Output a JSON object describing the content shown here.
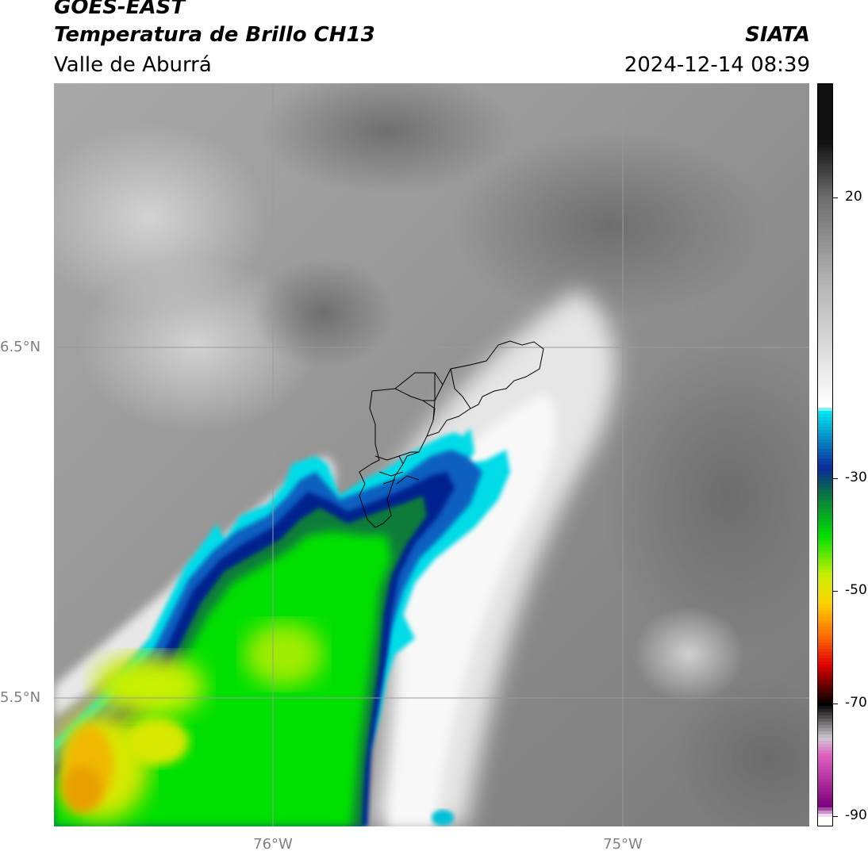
{
  "header": {
    "satellite": "GOES-EAST",
    "product": "Temperatura de Brillo CH13",
    "region": "Valle de Aburrá",
    "organization": "SIATA",
    "datetime": "2024-12-14 08:39"
  },
  "map": {
    "lat_labels": [
      "6.5°N",
      "5.5°N"
    ],
    "lon_labels": [
      "76°W",
      "75°W"
    ],
    "gridline_color": "#9a9a9a",
    "boundary_color": "#000000"
  },
  "colorbar": {
    "labels": [
      "20",
      "-30",
      "-50",
      "-70",
      "-90"
    ],
    "stops": [
      {
        "value": 30,
        "color": "#111111"
      },
      {
        "value": 20,
        "color": "#6e6e6e"
      },
      {
        "value": 5,
        "color": "#b4b4b4"
      },
      {
        "value": -17,
        "color": "#ffffff"
      },
      {
        "value": -18,
        "color": "#00e5f0"
      },
      {
        "value": -28,
        "color": "#0a2a9a"
      },
      {
        "value": -32,
        "color": "#0a6a4a"
      },
      {
        "value": -40,
        "color": "#00e000"
      },
      {
        "value": -47,
        "color": "#c8f000"
      },
      {
        "value": -52,
        "color": "#ffd200"
      },
      {
        "value": -58,
        "color": "#ff6a00"
      },
      {
        "value": -63,
        "color": "#e00000"
      },
      {
        "value": -70,
        "color": "#000000"
      },
      {
        "value": -76,
        "color": "#d0c8d0"
      },
      {
        "value": -79,
        "color": "#e060c0"
      },
      {
        "value": -88,
        "color": "#800080"
      },
      {
        "value": -90,
        "color": "#ffffff"
      }
    ]
  }
}
